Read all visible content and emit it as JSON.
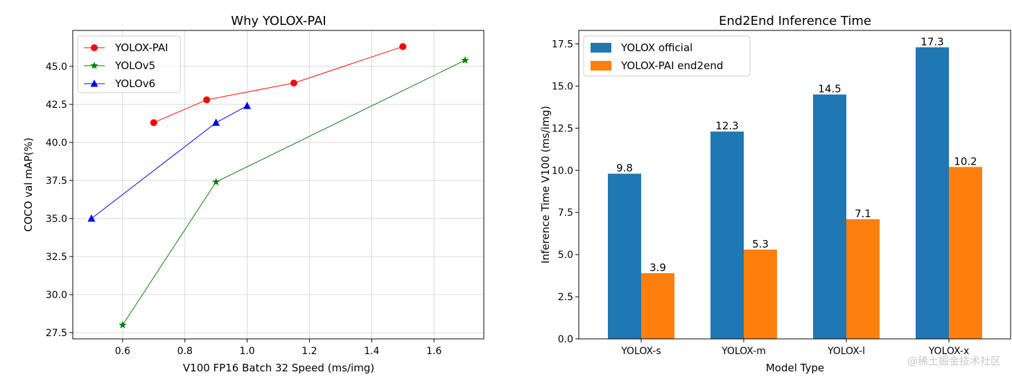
{
  "chart_data": [
    {
      "type": "line",
      "title": "Why YOLOX-PAI",
      "xlabel": "V100 FP16 Batch 32 Speed (ms/img)",
      "ylabel": "COCO val mAP(%)",
      "xlim": [
        0.44,
        1.76
      ],
      "ylim": [
        27.09,
        47.36
      ],
      "xticks": [
        0.6,
        0.8,
        1.0,
        1.2,
        1.4,
        1.6
      ],
      "xtick_labels": [
        "0.6",
        "0.8",
        "1.0",
        "1.2",
        "1.4",
        "1.6"
      ],
      "yticks": [
        27.5,
        30.0,
        32.5,
        35.0,
        37.5,
        40.0,
        42.5,
        45.0
      ],
      "ytick_labels": [
        "27.5",
        "30.0",
        "32.5",
        "35.0",
        "37.5",
        "40.0",
        "42.5",
        "45.0"
      ],
      "grid": true,
      "legend_position": "top-left",
      "series": [
        {
          "name": "YOLOX-PAI",
          "color": "#ff0000",
          "marker": "circle",
          "x": [
            0.7,
            0.87,
            1.15,
            1.5
          ],
          "y": [
            41.3,
            42.8,
            43.9,
            46.3
          ]
        },
        {
          "name": "YOLOv5",
          "color": "#008000",
          "marker": "star",
          "x": [
            0.6,
            0.9,
            1.7
          ],
          "y": [
            28.0,
            37.4,
            45.4
          ]
        },
        {
          "name": "YOLOv6",
          "color": "#0000ff",
          "marker": "triangle",
          "x": [
            0.5,
            0.9,
            1.0
          ],
          "y": [
            35.0,
            41.3,
            42.4
          ]
        }
      ]
    },
    {
      "type": "bar",
      "title": "End2End Inference Time",
      "xlabel": "Model Type",
      "ylabel": "Inference Time V100 (ms/img)",
      "categories": [
        "YOLOX-s",
        "YOLOX-m",
        "YOLOX-l",
        "YOLOX-x"
      ],
      "ylim": [
        0,
        18.3
      ],
      "yticks": [
        0.0,
        2.5,
        5.0,
        7.5,
        10.0,
        12.5,
        15.0,
        17.5
      ],
      "ytick_labels": [
        "0.0",
        "2.5",
        "5.0",
        "7.5",
        "10.0",
        "12.5",
        "15.0",
        "17.5"
      ],
      "grid": false,
      "legend_position": "top-left",
      "series": [
        {
          "name": "YOLOX official",
          "color": "#1f77b4",
          "values": [
            9.8,
            12.3,
            14.5,
            17.3
          ],
          "labels": [
            "9.8",
            "12.3",
            "14.5",
            "17.3"
          ]
        },
        {
          "name": "YOLOX-PAI end2end",
          "color": "#ff7f0e",
          "values": [
            3.9,
            5.3,
            7.1,
            10.2
          ],
          "labels": [
            "3.9",
            "5.3",
            "7.1",
            "10.2"
          ]
        }
      ]
    }
  ],
  "watermark": "@稀土掘金技术社区"
}
